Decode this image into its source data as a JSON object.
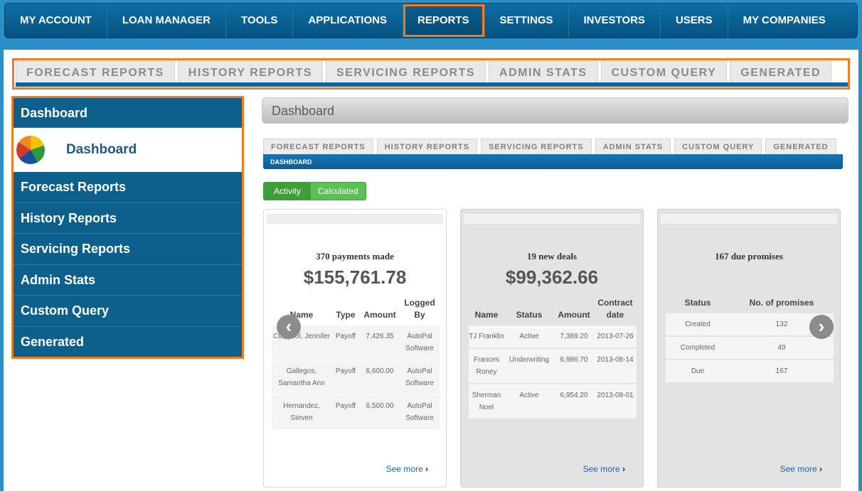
{
  "nav": [
    "MY ACCOUNT",
    "LOAN MANAGER",
    "TOOLS",
    "APPLICATIONS",
    "REPORTS",
    "SETTINGS",
    "INVESTORS",
    "USERS",
    "MY COMPANIES"
  ],
  "top_tabs": [
    "FORECAST REPORTS",
    "HISTORY REPORTS",
    "SERVICING REPORTS",
    "ADMIN STATS",
    "CUSTOM QUERY",
    "GENERATED"
  ],
  "sidebar": {
    "header": "Dashboard",
    "dashboard_item": "Dashboard",
    "items": [
      "Forecast Reports",
      "History Reports",
      "Servicing Reports",
      "Admin Stats",
      "Custom Query",
      "Generated"
    ]
  },
  "main": {
    "title": "Dashboard",
    "inner_tabs": [
      "FORECAST REPORTS",
      "HISTORY REPORTS",
      "SERVICING REPORTS",
      "ADMIN STATS",
      "CUSTOM QUERY",
      "GENERATED"
    ],
    "inner_bar_label": "DASHBOARD",
    "toggle": [
      "Activity",
      "Calculated"
    ]
  },
  "cards": [
    {
      "title": "370 payments made",
      "amount": "$155,761.78",
      "headers": [
        "Name",
        "Type",
        "Amount",
        "Logged By"
      ],
      "rows": [
        [
          "Claypool, Jennifer",
          "Payoff",
          "7,426.35",
          "AutoPal Software"
        ],
        [
          "Gallegos, Samantha Ann",
          "Payoff",
          "6,600.00",
          "AutoPal Software"
        ],
        [
          "Hernandez, Steven",
          "Payoff",
          "6,500.00",
          "AutoPal Software"
        ]
      ],
      "see_more": "See more"
    },
    {
      "title": "19 new deals",
      "amount": "$99,362.66",
      "headers": [
        "Name",
        "Status",
        "Amount",
        "Contract date"
      ],
      "rows": [
        [
          "TJ Franklin",
          "Active",
          "7,389.20",
          "2013-07-26"
        ],
        [
          "Frances Roney",
          "Underwriting",
          "6,986.70",
          "2013-08-14"
        ],
        [
          "Sherman Noel",
          "Active",
          "6,954.20",
          "2013-08-01"
        ]
      ],
      "see_more": "See more"
    },
    {
      "title": "167 due promises",
      "headers": [
        "Status",
        "No. of promises"
      ],
      "rows": [
        [
          "Created",
          "132"
        ],
        [
          "Completed",
          "49"
        ],
        [
          "Due",
          "167"
        ]
      ],
      "see_more": "See more"
    }
  ],
  "icons": {
    "prev": "chevron-left-icon",
    "next": "chevron-right-icon",
    "dashboard": "pie-chart-icon"
  }
}
